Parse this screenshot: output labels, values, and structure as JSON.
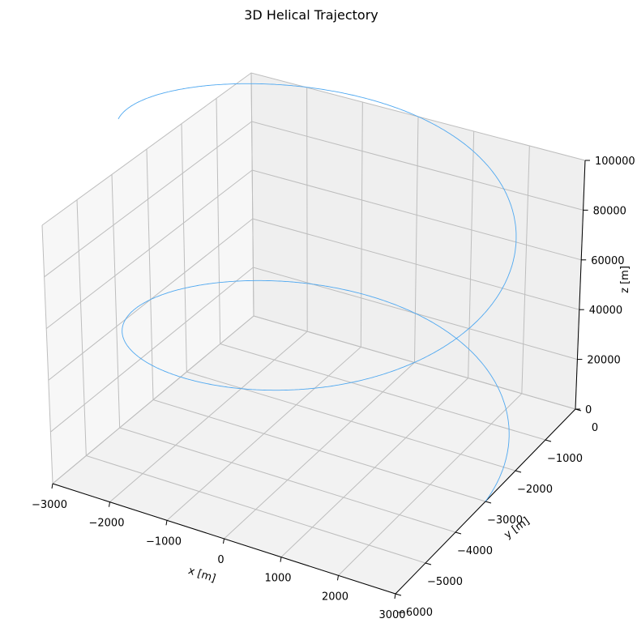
{
  "chart_data": {
    "type": "line3d",
    "title": "3D Helical Trajectory",
    "xlabel": "x [m]",
    "ylabel": "y [m]",
    "zlabel": "z [m]",
    "xlim": [
      -3000,
      3000
    ],
    "ylim": [
      -6000,
      0
    ],
    "zlim": [
      0,
      100000
    ],
    "x_ticks": [
      -3000,
      -2000,
      -1000,
      0,
      1000,
      2000,
      3000
    ],
    "y_ticks": [
      0,
      -1000,
      -2000,
      -3000,
      -4000,
      -5000,
      -6000
    ],
    "z_ticks": [
      0,
      20000,
      40000,
      60000,
      80000,
      100000
    ],
    "x_tick_labels": [
      "−3000",
      "−2000",
      "−1000",
      "0",
      "1000",
      "2000",
      "3000"
    ],
    "y_tick_labels": [
      "0",
      "−1000",
      "−2000",
      "−3000",
      "−4000",
      "−5000",
      "−6000"
    ],
    "z_tick_labels": [
      "0",
      "20000",
      "40000",
      "60000",
      "80000",
      "100000"
    ],
    "grid": true,
    "series": [
      {
        "color": "#4fa8f0",
        "helix": {
          "radius": 3000,
          "z_per_turn": 80000,
          "center_x": 0,
          "center_y": -3000,
          "z_start": 0,
          "z_end": 125000
        }
      }
    ]
  }
}
